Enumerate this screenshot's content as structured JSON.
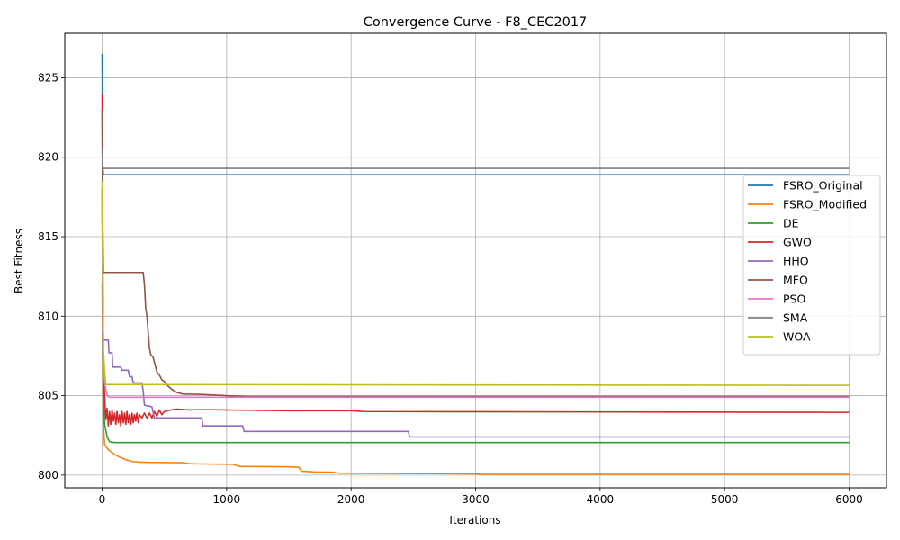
{
  "chart_data": {
    "type": "line",
    "title": "Convergence Curve - F8_CEC2017",
    "xlabel": "Iterations",
    "ylabel": "Best Fitness",
    "xlim": [
      -300,
      6300
    ],
    "ylim": [
      799.2,
      827.8
    ],
    "xticks": [
      0,
      1000,
      2000,
      3000,
      4000,
      5000,
      6000
    ],
    "yticks": [
      800,
      805,
      810,
      815,
      820,
      825
    ],
    "grid": true,
    "legend_position": "right",
    "series": [
      {
        "name": "FSRO_Original",
        "color": "#1f77b4",
        "points": [
          [
            0,
            826.5
          ],
          [
            5,
            819.5
          ],
          [
            10,
            818.9
          ],
          [
            6000,
            818.9
          ]
        ]
      },
      {
        "name": "FSRO_Modified",
        "color": "#ff7f0e",
        "points": [
          [
            0,
            812.0
          ],
          [
            5,
            808.0
          ],
          [
            10,
            803.2
          ],
          [
            20,
            801.9
          ],
          [
            50,
            801.6
          ],
          [
            100,
            801.3
          ],
          [
            150,
            801.1
          ],
          [
            200,
            800.95
          ],
          [
            250,
            800.85
          ],
          [
            300,
            800.82
          ],
          [
            400,
            800.8
          ],
          [
            650,
            800.78
          ],
          [
            700,
            800.72
          ],
          [
            800,
            800.7
          ],
          [
            1050,
            800.68
          ],
          [
            1100,
            800.55
          ],
          [
            1500,
            800.52
          ],
          [
            1580,
            800.5
          ],
          [
            1600,
            800.25
          ],
          [
            1700,
            800.2
          ],
          [
            1850,
            800.18
          ],
          [
            1900,
            800.12
          ],
          [
            3000,
            800.08
          ],
          [
            3050,
            800.05
          ],
          [
            6000,
            800.05
          ]
        ]
      },
      {
        "name": "DE",
        "color": "#2ca02c",
        "points": [
          [
            0,
            818.0
          ],
          [
            5,
            810.0
          ],
          [
            10,
            805.0
          ],
          [
            20,
            803.2
          ],
          [
            40,
            802.4
          ],
          [
            60,
            802.1
          ],
          [
            100,
            802.05
          ],
          [
            6000,
            802.05
          ]
        ]
      },
      {
        "name": "GWO",
        "color": "#d62728",
        "points": [
          [
            0,
            824.0
          ],
          [
            5,
            815.0
          ],
          [
            10,
            807.0
          ],
          [
            20,
            805.0
          ],
          [
            30,
            803.5
          ],
          [
            40,
            804.2
          ],
          [
            50,
            803.1
          ],
          [
            60,
            804.0
          ],
          [
            70,
            803.2
          ],
          [
            80,
            804.1
          ],
          [
            90,
            803.4
          ],
          [
            100,
            803.9
          ],
          [
            110,
            803.2
          ],
          [
            120,
            804.0
          ],
          [
            130,
            803.3
          ],
          [
            140,
            803.8
          ],
          [
            150,
            803.1
          ],
          [
            160,
            804.0
          ],
          [
            170,
            803.3
          ],
          [
            180,
            803.9
          ],
          [
            190,
            803.2
          ],
          [
            200,
            804.0
          ],
          [
            210,
            803.3
          ],
          [
            220,
            803.8
          ],
          [
            230,
            803.2
          ],
          [
            240,
            803.9
          ],
          [
            250,
            803.3
          ],
          [
            260,
            803.8
          ],
          [
            270,
            803.4
          ],
          [
            280,
            803.9
          ],
          [
            290,
            803.3
          ],
          [
            300,
            803.8
          ],
          [
            320,
            803.6
          ],
          [
            340,
            803.9
          ],
          [
            360,
            803.6
          ],
          [
            380,
            803.9
          ],
          [
            400,
            803.6
          ],
          [
            420,
            804.0
          ],
          [
            440,
            803.7
          ],
          [
            460,
            804.1
          ],
          [
            480,
            803.8
          ],
          [
            500,
            804.0
          ],
          [
            550,
            804.1
          ],
          [
            600,
            804.15
          ],
          [
            700,
            804.1
          ],
          [
            800,
            804.12
          ],
          [
            1000,
            804.1
          ],
          [
            1500,
            804.05
          ],
          [
            2000,
            804.05
          ],
          [
            2100,
            804.0
          ],
          [
            6000,
            803.95
          ]
        ]
      },
      {
        "name": "HHO",
        "color": "#9467bd",
        "points": [
          [
            0,
            818.0
          ],
          [
            5,
            812.0
          ],
          [
            10,
            808.5
          ],
          [
            50,
            808.5
          ],
          [
            55,
            807.7
          ],
          [
            80,
            807.7
          ],
          [
            85,
            806.8
          ],
          [
            150,
            806.8
          ],
          [
            160,
            806.6
          ],
          [
            210,
            806.6
          ],
          [
            220,
            806.2
          ],
          [
            240,
            806.2
          ],
          [
            250,
            805.8
          ],
          [
            320,
            805.8
          ],
          [
            330,
            805.3
          ],
          [
            340,
            804.4
          ],
          [
            400,
            804.3
          ],
          [
            420,
            803.6
          ],
          [
            800,
            803.6
          ],
          [
            810,
            803.1
          ],
          [
            1130,
            803.1
          ],
          [
            1140,
            802.75
          ],
          [
            2460,
            802.75
          ],
          [
            2470,
            802.4
          ],
          [
            6000,
            802.4
          ]
        ]
      },
      {
        "name": "MFO",
        "color": "#8c564b",
        "points": [
          [
            0,
            823.0
          ],
          [
            5,
            816.0
          ],
          [
            10,
            812.75
          ],
          [
            330,
            812.75
          ],
          [
            340,
            812.0
          ],
          [
            350,
            810.5
          ],
          [
            360,
            810.0
          ],
          [
            370,
            809.0
          ],
          [
            380,
            808.0
          ],
          [
            390,
            807.6
          ],
          [
            410,
            807.4
          ],
          [
            420,
            807.1
          ],
          [
            440,
            806.5
          ],
          [
            460,
            806.3
          ],
          [
            480,
            806.0
          ],
          [
            500,
            805.9
          ],
          [
            530,
            805.6
          ],
          [
            560,
            805.4
          ],
          [
            600,
            805.2
          ],
          [
            650,
            805.1
          ],
          [
            800,
            805.08
          ],
          [
            1000,
            805.0
          ],
          [
            1200,
            804.95
          ],
          [
            6000,
            804.95
          ]
        ]
      },
      {
        "name": "PSO",
        "color": "#e377c2",
        "points": [
          [
            0,
            818.0
          ],
          [
            5,
            810.0
          ],
          [
            10,
            807.0
          ],
          [
            20,
            805.8
          ],
          [
            40,
            805.0
          ],
          [
            60,
            804.9
          ],
          [
            6000,
            804.9
          ]
        ]
      },
      {
        "name": "SMA",
        "color": "#7f7f7f",
        "points": [
          [
            0,
            820.5
          ],
          [
            5,
            819.3
          ],
          [
            6000,
            819.3
          ]
        ]
      },
      {
        "name": "WOA",
        "color": "#bcbd22",
        "points": [
          [
            0,
            818.5
          ],
          [
            5,
            812.0
          ],
          [
            10,
            808.0
          ],
          [
            20,
            806.5
          ],
          [
            30,
            805.7
          ],
          [
            6000,
            805.65
          ]
        ]
      }
    ]
  }
}
